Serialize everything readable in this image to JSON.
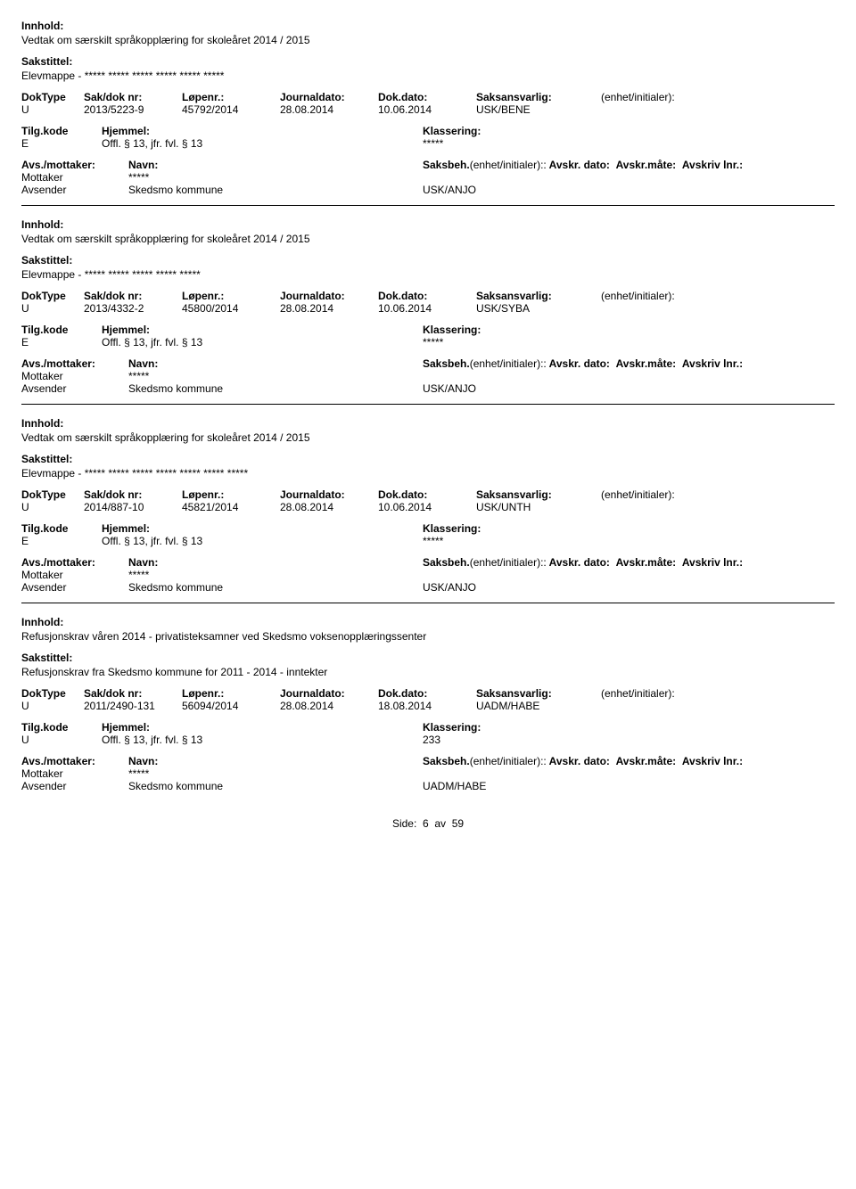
{
  "labels": {
    "innhold": "Innhold:",
    "sakstittel": "Sakstittel:",
    "doktype": "DokType",
    "sakdok": "Sak/dok nr:",
    "lopenr": "Løpenr.:",
    "journaldato": "Journaldato:",
    "dokdato": "Dok.dato:",
    "saksansvarlig": "Saksansvarlig:",
    "enhetinit": "(enhet/initialer):",
    "tilgkode": "Tilg.kode",
    "hjemmel": "Hjemmel:",
    "klassering": "Klassering:",
    "avsmottaker": "Avs./mottaker:",
    "navn": "Navn:",
    "saksbeh": "Saksbeh.",
    "avskrdato": "Avskr. dato:",
    "avskrmate": "Avskr.måte:",
    "avskrivlnr": "Avskriv lnr.:",
    "mottaker": "Mottaker",
    "avsender": "Avsender"
  },
  "records": [
    {
      "innhold": "Vedtak om særskilt språkopplæring for skoleåret 2014 / 2015",
      "sakstittel": "Elevmappe - ***** ***** ***** ***** ***** *****",
      "doktype": "U",
      "sakdok": "2013/5223-9",
      "lopenr": "45792/2014",
      "journaldato": "28.08.2014",
      "dokdato": "10.06.2014",
      "saksansvarlig": "USK/BENE",
      "enhetinit": "",
      "tilgkode": "E",
      "hjemmel": "Offl. § 13, jfr. fvl. § 13",
      "klassering": "*****",
      "mottaker_navn": "*****",
      "avsender_navn": "Skedsmo kommune",
      "avsender_kode": "USK/ANJO"
    },
    {
      "innhold": "Vedtak om særskilt språkopplæring for skoleåret 2014 / 2015",
      "sakstittel": "Elevmappe - ***** ***** ***** ***** *****",
      "doktype": "U",
      "sakdok": "2013/4332-2",
      "lopenr": "45800/2014",
      "journaldato": "28.08.2014",
      "dokdato": "10.06.2014",
      "saksansvarlig": "USK/SYBA",
      "enhetinit": "",
      "tilgkode": "E",
      "hjemmel": "Offl. § 13, jfr. fvl. § 13",
      "klassering": "*****",
      "mottaker_navn": "*****",
      "avsender_navn": "Skedsmo kommune",
      "avsender_kode": "USK/ANJO"
    },
    {
      "innhold": "Vedtak om særskilt språkopplæring for skoleåret 2014 / 2015",
      "sakstittel": "Elevmappe - ***** ***** ***** ***** ***** ***** *****",
      "doktype": "U",
      "sakdok": "2014/887-10",
      "lopenr": "45821/2014",
      "journaldato": "28.08.2014",
      "dokdato": "10.06.2014",
      "saksansvarlig": "USK/UNTH",
      "enhetinit": "",
      "tilgkode": "E",
      "hjemmel": "Offl. § 13, jfr. fvl. § 13",
      "klassering": "*****",
      "mottaker_navn": "*****",
      "avsender_navn": "Skedsmo kommune",
      "avsender_kode": "USK/ANJO"
    },
    {
      "innhold": "Refusjonskrav våren 2014  - privatisteksamner ved Skedsmo voksenopplæringssenter",
      "sakstittel": "Refusjonskrav fra Skedsmo kommune for 2011 - 2014 - inntekter",
      "doktype": "U",
      "sakdok": "2011/2490-131",
      "lopenr": "56094/2014",
      "journaldato": "28.08.2014",
      "dokdato": "18.08.2014",
      "saksansvarlig": "UADM/HABE",
      "enhetinit": "",
      "tilgkode": "U",
      "hjemmel": "Offl. § 13, jfr. fvl. § 13",
      "klassering": "233",
      "mottaker_navn": "*****",
      "avsender_navn": "Skedsmo kommune",
      "avsender_kode": "UADM/HABE"
    }
  ],
  "footer": {
    "side": "Side:",
    "page": "6",
    "av": "av",
    "total": "59"
  }
}
